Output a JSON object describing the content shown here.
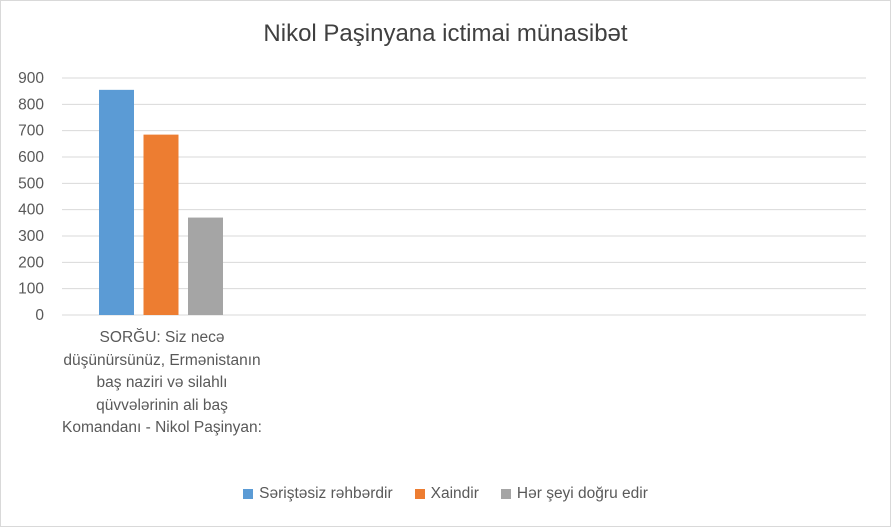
{
  "chart_data": {
    "type": "bar",
    "title": "Nikol Paşinyana ictimai münasibət",
    "categories": [
      "SORĞU: Siz necə düşünürsünüz, Ermənistanın baş naziri və silahlı qüvvələrinin ali baş Komandanı - Nikol Paşinyan:"
    ],
    "series": [
      {
        "name": "Səriştəsiz rəhbərdir",
        "values": [
          855
        ],
        "color": "#5b9bd5"
      },
      {
        "name": "Xaindir",
        "values": [
          685
        ],
        "color": "#ed7d31"
      },
      {
        "name": "Hər şeyi doğru edir",
        "values": [
          370
        ],
        "color": "#a5a5a5"
      }
    ],
    "yticks": [
      "0",
      "100",
      "200",
      "300",
      "400",
      "500",
      "600",
      "700",
      "800",
      "900"
    ],
    "ylim": [
      0,
      900
    ],
    "grid": true,
    "legend_position": "bottom",
    "xlabel": "",
    "ylabel": ""
  }
}
